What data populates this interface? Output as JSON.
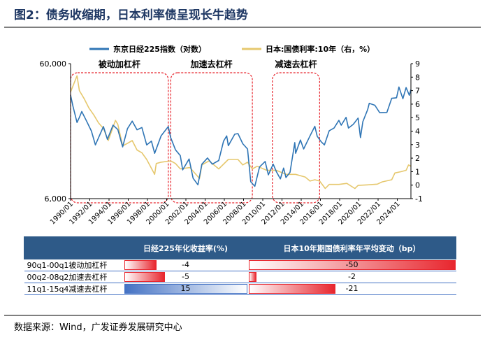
{
  "title": "图2：债务收缩期，日本利率债呈现长牛趋势",
  "source": "数据来源：Wind，广发证券发展研究中心",
  "chart_data": {
    "type": "line",
    "legend": {
      "placement": "top",
      "items": [
        {
          "name": "东京日经225指数（对数）",
          "color": "#2f75b5"
        },
        {
          "name": "日本:国债利率:10年（右，%）",
          "color": "#e6c86e"
        }
      ]
    },
    "left_axis": {
      "scale": "log",
      "ticks": [
        "60,000",
        "6,000"
      ],
      "ylim": [
        6000,
        60000
      ]
    },
    "right_axis": {
      "ticks": [
        "9",
        "8",
        "7",
        "6",
        "5",
        "4",
        "3",
        "2",
        "1",
        "0",
        "-1"
      ],
      "ylim": [
        -1,
        9
      ]
    },
    "x_axis": {
      "ticks": [
        "1990/01",
        "1992/01",
        "1994/01",
        "1996/01",
        "1998/01",
        "2000/01",
        "2002/01",
        "2004/01",
        "2006/01",
        "2008/01",
        "2010/01",
        "2012/01",
        "2014/01",
        "2016/01",
        "2018/01",
        "2020/01",
        "2022/01",
        "2024/01"
      ],
      "range": [
        "1990-01",
        "2025-06"
      ]
    },
    "grid": false,
    "annotations": [
      {
        "label": "被动加杠杆",
        "start": "1990-01",
        "end": "2000-03"
      },
      {
        "label": "加速去杠杆",
        "start": "2000-06",
        "end": "2008-12"
      },
      {
        "label": "减速去杠杆",
        "start": "2011-01",
        "end": "2015-12"
      }
    ],
    "series": [
      {
        "name": "东京日经225指数（对数）",
        "axis": "left",
        "points": [
          [
            "1990-01",
            35000
          ],
          [
            "1990-04",
            29000
          ],
          [
            "1990-09",
            22000
          ],
          [
            "1990-12",
            24000
          ],
          [
            "1991-03",
            26500
          ],
          [
            "1991-09",
            22500
          ],
          [
            "1992-03",
            19000
          ],
          [
            "1992-08",
            15000
          ],
          [
            "1992-12",
            17000
          ],
          [
            "1993-06",
            20500
          ],
          [
            "1993-11",
            16500
          ],
          [
            "1994-06",
            21000
          ],
          [
            "1994-12",
            19500
          ],
          [
            "1995-06",
            14500
          ],
          [
            "1995-12",
            19800
          ],
          [
            "1996-06",
            22500
          ],
          [
            "1996-12",
            19400
          ],
          [
            "1997-06",
            20200
          ],
          [
            "1997-12",
            15000
          ],
          [
            "1998-06",
            16000
          ],
          [
            "1998-10",
            13000
          ],
          [
            "1999-06",
            17500
          ],
          [
            "2000-03",
            20500
          ],
          [
            "2000-06",
            17000
          ],
          [
            "2000-12",
            13800
          ],
          [
            "2001-06",
            12500
          ],
          [
            "2001-09",
            9800
          ],
          [
            "2002-05",
            11800
          ],
          [
            "2002-10",
            8500
          ],
          [
            "2003-04",
            7600
          ],
          [
            "2003-09",
            10800
          ],
          [
            "2004-04",
            12000
          ],
          [
            "2004-10",
            10800
          ],
          [
            "2005-06",
            11500
          ],
          [
            "2005-12",
            16000
          ],
          [
            "2006-04",
            17500
          ],
          [
            "2006-06",
            14800
          ],
          [
            "2007-02",
            18000
          ],
          [
            "2007-06",
            18200
          ],
          [
            "2007-12",
            15300
          ],
          [
            "2008-06",
            14000
          ],
          [
            "2008-10",
            8000
          ],
          [
            "2009-03",
            7400
          ],
          [
            "2009-09",
            10300
          ],
          [
            "2010-04",
            11300
          ],
          [
            "2010-08",
            9000
          ],
          [
            "2011-02",
            10800
          ],
          [
            "2011-06",
            9500
          ],
          [
            "2011-11",
            8400
          ],
          [
            "2012-03",
            10100
          ],
          [
            "2012-06",
            8600
          ],
          [
            "2012-11",
            9400
          ],
          [
            "2013-05",
            15600
          ],
          [
            "2013-06",
            13000
          ],
          [
            "2013-12",
            16300
          ],
          [
            "2014-04",
            14000
          ],
          [
            "2014-12",
            17500
          ],
          [
            "2015-06",
            20600
          ],
          [
            "2015-09",
            17400
          ],
          [
            "2016-02",
            15800
          ],
          [
            "2016-06",
            15000
          ],
          [
            "2016-12",
            19100
          ],
          [
            "2017-06",
            20000
          ],
          [
            "2017-12",
            22800
          ],
          [
            "2018-03",
            21000
          ],
          [
            "2018-09",
            24000
          ],
          [
            "2018-12",
            20000
          ],
          [
            "2019-06",
            21300
          ],
          [
            "2019-12",
            23700
          ],
          [
            "2020-03",
            17000
          ],
          [
            "2020-06",
            22300
          ],
          [
            "2020-12",
            27400
          ],
          [
            "2021-02",
            30500
          ],
          [
            "2021-09",
            29500
          ],
          [
            "2022-03",
            26000
          ],
          [
            "2022-12",
            26100
          ],
          [
            "2023-06",
            33200
          ],
          [
            "2023-12",
            33500
          ],
          [
            "2024-03",
            40300
          ],
          [
            "2024-08",
            33000
          ],
          [
            "2024-12",
            39900
          ],
          [
            "2025-04",
            35000
          ],
          [
            "2025-06",
            38500
          ]
        ]
      },
      {
        "name": "日本:国债利率:10年（右，%）",
        "axis": "right",
        "points": [
          [
            "1990-01",
            6.9
          ],
          [
            "1990-09",
            8.1
          ],
          [
            "1990-12",
            7.0
          ],
          [
            "1991-06",
            6.4
          ],
          [
            "1991-12",
            5.7
          ],
          [
            "1992-06",
            5.2
          ],
          [
            "1992-12",
            4.6
          ],
          [
            "1993-06",
            4.2
          ],
          [
            "1993-12",
            3.3
          ],
          [
            "1994-09",
            4.8
          ],
          [
            "1994-12",
            4.5
          ],
          [
            "1995-06",
            2.9
          ],
          [
            "1995-12",
            3.1
          ],
          [
            "1996-06",
            3.3
          ],
          [
            "1996-12",
            2.6
          ],
          [
            "1997-06",
            2.4
          ],
          [
            "1997-12",
            1.9
          ],
          [
            "1998-10",
            0.8
          ],
          [
            "1998-12",
            1.6
          ],
          [
            "1999-06",
            1.7
          ],
          [
            "2000-06",
            1.8
          ],
          [
            "2000-12",
            1.6
          ],
          [
            "2001-06",
            1.2
          ],
          [
            "2002-06",
            1.3
          ],
          [
            "2003-06",
            0.5
          ],
          [
            "2003-09",
            1.5
          ],
          [
            "2004-06",
            1.8
          ],
          [
            "2005-06",
            1.2
          ],
          [
            "2006-06",
            1.9
          ],
          [
            "2007-06",
            1.9
          ],
          [
            "2007-12",
            1.5
          ],
          [
            "2008-06",
            1.7
          ],
          [
            "2008-12",
            1.2
          ],
          [
            "2009-06",
            1.4
          ],
          [
            "2010-06",
            1.1
          ],
          [
            "2010-12",
            1.1
          ],
          [
            "2011-06",
            1.1
          ],
          [
            "2012-06",
            0.8
          ],
          [
            "2012-12",
            0.8
          ],
          [
            "2013-06",
            0.8
          ],
          [
            "2014-06",
            0.6
          ],
          [
            "2014-12",
            0.3
          ],
          [
            "2015-06",
            0.4
          ],
          [
            "2015-12",
            0.3
          ],
          [
            "2016-07",
            -0.25
          ],
          [
            "2016-12",
            0.05
          ],
          [
            "2017-12",
            0.05
          ],
          [
            "2018-10",
            0.13
          ],
          [
            "2019-08",
            -0.25
          ],
          [
            "2019-12",
            -0.02
          ],
          [
            "2020-12",
            0.02
          ],
          [
            "2021-12",
            0.07
          ],
          [
            "2022-06",
            0.24
          ],
          [
            "2023-06",
            0.4
          ],
          [
            "2023-10",
            0.9
          ],
          [
            "2024-06",
            1.0
          ],
          [
            "2024-12",
            1.1
          ],
          [
            "2025-03",
            1.5
          ],
          [
            "2025-06",
            1.4
          ]
        ]
      }
    ]
  },
  "table": {
    "headers": [
      "",
      "日经225年化收益率(%)",
      "日本10年期国债利率年平均变动（bp）"
    ],
    "rows": [
      {
        "label": "90q1-00q1被动加杠杆",
        "nikkei": "-4",
        "nikkei_value": -4,
        "jgb": "-50",
        "jgb_value": -50
      },
      {
        "label": "00q2-08q2加速去杠杆",
        "nikkei": "-5",
        "nikkei_value": -5,
        "jgb": "-2",
        "jgb_value": -2
      },
      {
        "label": "11q1-15q4减速去杠杆",
        "nikkei": "15",
        "nikkei_value": 15,
        "jgb": "-21",
        "jgb_value": -21
      }
    ],
    "colors": {
      "negative": "#e8262e",
      "positive": "#4472c4",
      "header": "#2e5a88"
    }
  }
}
